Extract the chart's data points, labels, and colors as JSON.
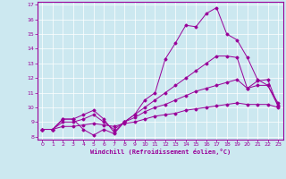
{
  "xlabel": "Windchill (Refroidissement éolien,°C)",
  "ylabel": "",
  "xlim": [
    -0.5,
    23.5
  ],
  "ylim": [
    7.8,
    17.2
  ],
  "yticks": [
    8,
    9,
    10,
    11,
    12,
    13,
    14,
    15,
    16,
    17
  ],
  "xticks": [
    0,
    1,
    2,
    3,
    4,
    5,
    6,
    7,
    8,
    9,
    10,
    11,
    12,
    13,
    14,
    15,
    16,
    17,
    18,
    19,
    20,
    21,
    22,
    23
  ],
  "background_color": "#cce8f0",
  "line_color": "#990099",
  "grid_color": "#ffffff",
  "line1_x": [
    0,
    1,
    2,
    3,
    4,
    5,
    6,
    7,
    8,
    9,
    10,
    11,
    12,
    13,
    14,
    15,
    16,
    17,
    18,
    19,
    20,
    21,
    22,
    23
  ],
  "line1_y": [
    8.5,
    8.5,
    9.2,
    9.2,
    8.5,
    8.1,
    8.5,
    8.2,
    9.0,
    9.5,
    10.5,
    11.0,
    13.3,
    14.4,
    15.6,
    15.5,
    16.4,
    16.8,
    15.0,
    14.6,
    13.4,
    11.9,
    11.5,
    10.1
  ],
  "line2_x": [
    0,
    1,
    2,
    3,
    4,
    5,
    6,
    7,
    8,
    9,
    10,
    11,
    12,
    13,
    14,
    15,
    16,
    17,
    18,
    19,
    20,
    21,
    22,
    23
  ],
  "line2_y": [
    8.5,
    8.5,
    9.2,
    9.2,
    9.5,
    9.8,
    9.2,
    8.3,
    9.0,
    9.5,
    10.0,
    10.5,
    11.0,
    11.5,
    12.0,
    12.5,
    13.0,
    13.5,
    13.5,
    13.4,
    11.3,
    11.8,
    11.9,
    10.1
  ],
  "line3_x": [
    0,
    1,
    2,
    3,
    4,
    5,
    6,
    7,
    8,
    9,
    10,
    11,
    12,
    13,
    14,
    15,
    16,
    17,
    18,
    19,
    20,
    21,
    22,
    23
  ],
  "line3_y": [
    8.5,
    8.5,
    9.0,
    9.0,
    9.2,
    9.5,
    9.0,
    8.5,
    9.0,
    9.3,
    9.7,
    10.0,
    10.2,
    10.5,
    10.8,
    11.1,
    11.3,
    11.5,
    11.7,
    11.9,
    11.3,
    11.5,
    11.5,
    10.3
  ],
  "line4_x": [
    0,
    1,
    2,
    3,
    4,
    5,
    6,
    7,
    8,
    9,
    10,
    11,
    12,
    13,
    14,
    15,
    16,
    17,
    18,
    19,
    20,
    21,
    22,
    23
  ],
  "line4_y": [
    8.5,
    8.5,
    8.7,
    8.7,
    8.8,
    8.9,
    8.8,
    8.7,
    8.9,
    9.0,
    9.2,
    9.4,
    9.5,
    9.6,
    9.8,
    9.9,
    10.0,
    10.1,
    10.2,
    10.3,
    10.2,
    10.2,
    10.2,
    10.0
  ]
}
